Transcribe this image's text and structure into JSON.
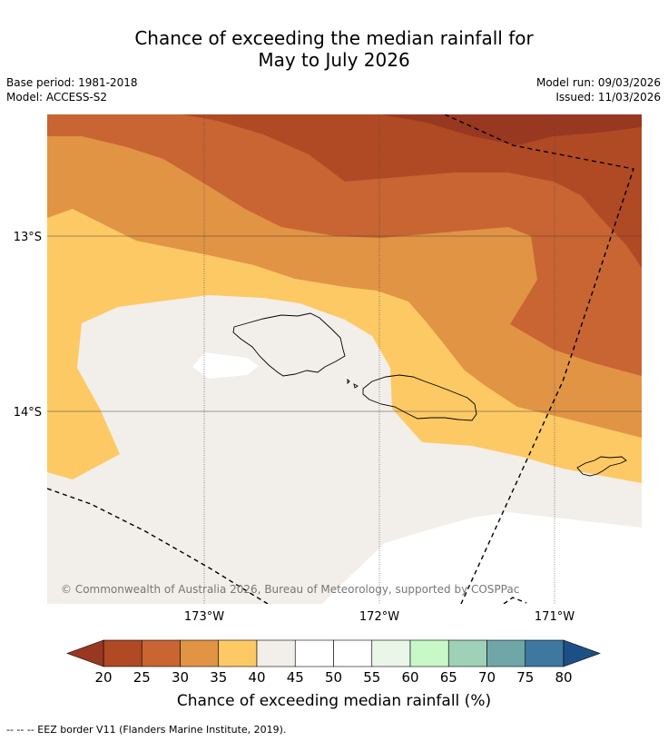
{
  "title_line1": "Chance of exceeding the median rainfall for",
  "title_line2": "May to July 2026",
  "meta": {
    "base_period": "Base period: 1981-2018",
    "model": "Model: ACCESS-S2",
    "model_run": "Model run: 09/03/2026",
    "issued": "Issued: 11/03/2026"
  },
  "map": {
    "lat_labels": [
      "13°S",
      "14°S"
    ],
    "lon_labels": [
      "173°W",
      "172°W",
      "171°W"
    ],
    "copyright": "© Commonwealth of Australia 2026, Bureau of Meteorology, supported by COSPPac"
  },
  "colorbar": {
    "ticks": [
      "20",
      "25",
      "30",
      "35",
      "40",
      "45",
      "50",
      "55",
      "60",
      "65",
      "70",
      "75",
      "80"
    ],
    "colors": [
      "#9b3a1f",
      "#b04a24",
      "#c86532",
      "#e09444",
      "#fdc965",
      "#f2eee9",
      "#ffffff",
      "#ffffff",
      "#e9f6e8",
      "#c8f8c8",
      "#9fd0b8",
      "#6fa7a8",
      "#3e77a0"
    ],
    "under_color": "#983821",
    "over_color": "#1d4f87",
    "label": "Chance of exceeding median rainfall (%)"
  },
  "legend_note": "--  --  -- EEZ border V11 (Flanders Marine Institute, 2019)."
}
